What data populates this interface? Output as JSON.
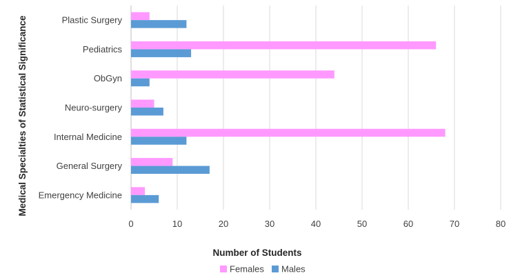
{
  "chart_data": {
    "type": "bar",
    "orientation": "horizontal",
    "categories": [
      "Plastic Surgery",
      "Pediatrics",
      "ObGyn",
      "Neuro-surgery",
      "Internal Medicine",
      "General Surgery",
      "Emergency Medicine"
    ],
    "series": [
      {
        "name": "Females",
        "values": [
          4,
          66,
          44,
          5,
          68,
          9,
          3
        ],
        "color": "#ff99ff"
      },
      {
        "name": "Males",
        "values": [
          12,
          13,
          4,
          7,
          12,
          17,
          6
        ],
        "color": "#5b9bd5"
      }
    ],
    "xlabel": "Number of Students",
    "ylabel": "Medical Specialties of Statistical Significance",
    "xlim": [
      0,
      80
    ],
    "xticks": [
      "0",
      "10",
      "20",
      "30",
      "40",
      "50",
      "60",
      "70",
      "80"
    ],
    "grid": "vertical",
    "legend": "bottom"
  }
}
